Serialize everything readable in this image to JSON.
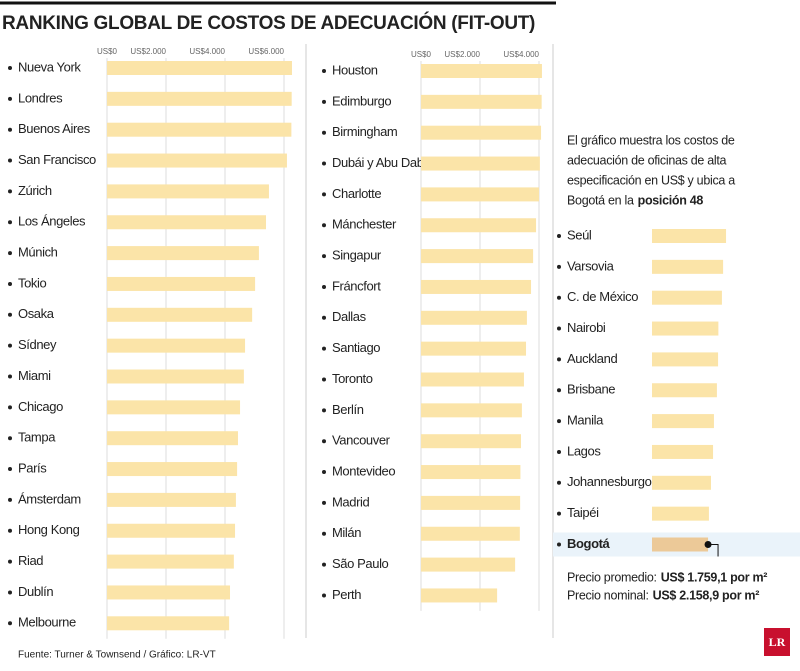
{
  "title": "RANKING GLOBAL DE COSTOS DE ADECUACIÓN (FIT-OUT)",
  "chart_data": [
    {
      "type": "bar",
      "orientation": "horizontal",
      "color": "#fbe4a8",
      "grid": true,
      "categories": [
        "Nueva York",
        "Londres",
        "Buenos Aires",
        "San Francisco",
        "Zúrich",
        "Los Ángeles",
        "Múnich",
        "Tokio",
        "Osaka",
        "Sídney",
        "Miami",
        "Chicago",
        "Tampa",
        "París",
        "Ámsterdam",
        "Hong Kong",
        "Riad",
        "Dublín",
        "Melbourne"
      ],
      "values": [
        6270,
        6260,
        6250,
        6100,
        5490,
        5390,
        5150,
        5020,
        4920,
        4680,
        4640,
        4510,
        4440,
        4410,
        4370,
        4340,
        4300,
        4170,
        4140
      ],
      "xlim": [
        0,
        6500
      ],
      "xticks": [
        {
          "value": 0,
          "label": "US$0"
        },
        {
          "value": 2000,
          "label": "US$2.000"
        },
        {
          "value": 4000,
          "label": "US$4.000"
        },
        {
          "value": 6000,
          "label": "US$6.000"
        }
      ]
    },
    {
      "type": "bar",
      "orientation": "horizontal",
      "color": "#fbe4a8",
      "grid": true,
      "categories": [
        "Houston",
        "Edimburgo",
        "Birmingham",
        "Dubái y Abu Dabi",
        "Charlotte",
        "Mánchester",
        "Singapur",
        "Fráncfort",
        "Dallas",
        "Santiago",
        "Toronto",
        "Berlín",
        "Vancouver",
        "Montevideo",
        "Madrid",
        "Milán",
        "São Paulo",
        "Perth"
      ],
      "values": [
        4100,
        4090,
        4070,
        4030,
        4000,
        3900,
        3800,
        3730,
        3590,
        3560,
        3490,
        3420,
        3390,
        3370,
        3360,
        3350,
        3190,
        2580
      ],
      "xlim": [
        0,
        4200
      ],
      "xticks": [
        {
          "value": 0,
          "label": "US$0"
        },
        {
          "value": 2000,
          "label": "US$2.000"
        },
        {
          "value": 4000,
          "label": "US$4.000"
        }
      ]
    },
    {
      "type": "bar",
      "orientation": "horizontal",
      "color": "#fbe4a8",
      "highlight_color": "#ecc998",
      "highlight_index": 10,
      "grid": true,
      "categories": [
        "Seúl",
        "Varsovia",
        "C. de México",
        "Nairobi",
        "Auckland",
        "Brisbane",
        "Manila",
        "Lagos",
        "Johannesburgo",
        "Taipéi",
        "Bogotá"
      ],
      "values": [
        2510,
        2410,
        2370,
        2250,
        2240,
        2200,
        2100,
        2070,
        2000,
        1930,
        1900
      ],
      "xlim": [
        0,
        2600
      ]
    }
  ],
  "note": {
    "lines": [
      "El gráfico muestra los costos de",
      "adecuación de oficinas de alta",
      "especificación en US$ y ubica a",
      "Bogotá en la"
    ],
    "bold": "posición 48"
  },
  "prices": [
    {
      "label": "Precio promedio:",
      "value": "US$ 1.759,1 por m²"
    },
    {
      "label": "Precio nominal:",
      "value": "US$ 2.158,9 por m²"
    }
  ],
  "source": "Fuente: Turner & Townsend / Gráfico: LR-VT",
  "logo": "LR"
}
